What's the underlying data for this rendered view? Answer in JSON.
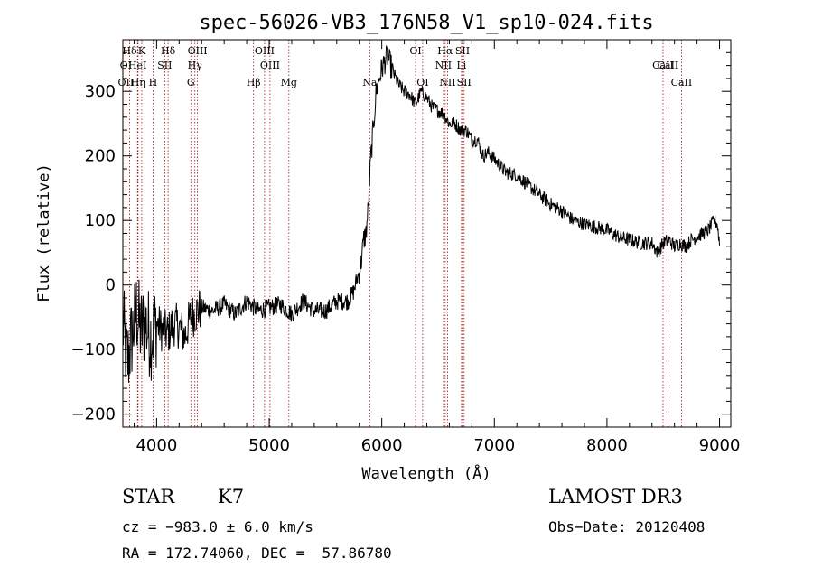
{
  "chart_data": {
    "type": "line",
    "title": "spec-56026-VB3_176N58_V1_sp10-024.fits",
    "xlabel": "Wavelength (Å)",
    "ylabel": "Flux (relative)",
    "xlim": [
      3700,
      9100
    ],
    "ylim": [
      -220,
      380
    ],
    "xticks": [
      4000,
      5000,
      6000,
      7000,
      8000,
      9000
    ],
    "yticks": [
      -200,
      -100,
      0,
      100,
      200,
      300
    ],
    "series": [
      {
        "name": "flux",
        "color": "#000000",
        "x": [
          3700,
          3740,
          3780,
          3820,
          3860,
          3900,
          3950,
          4000,
          4050,
          4100,
          4150,
          4200,
          4250,
          4300,
          4400,
          4500,
          4600,
          4700,
          4800,
          4900,
          5000,
          5100,
          5200,
          5300,
          5400,
          5500,
          5600,
          5700,
          5750,
          5780,
          5800,
          5820,
          5840,
          5860,
          5880,
          5900,
          5950,
          6000,
          6050,
          6100,
          6150,
          6200,
          6250,
          6300,
          6350,
          6400,
          6450,
          6500,
          6550,
          6600,
          6650,
          6700,
          6750,
          6800,
          6850,
          6900,
          6950,
          7000,
          7100,
          7200,
          7300,
          7400,
          7500,
          7600,
          7700,
          7800,
          7900,
          8000,
          8100,
          8200,
          8300,
          8400,
          8450,
          8500,
          8550,
          8600,
          8650,
          8700,
          8750,
          8800,
          8850,
          8900,
          8950,
          8980,
          9000
        ],
        "y": [
          -60,
          -120,
          -80,
          -40,
          -70,
          -60,
          -80,
          -60,
          -70,
          -75,
          -60,
          -65,
          -80,
          -50,
          -35,
          -40,
          -30,
          -45,
          -25,
          -40,
          -35,
          -30,
          -45,
          -25,
          -40,
          -40,
          -25,
          -25,
          -10,
          10,
          20,
          40,
          70,
          80,
          120,
          190,
          300,
          335,
          355,
          330,
          310,
          300,
          295,
          280,
          300,
          290,
          275,
          270,
          265,
          250,
          250,
          240,
          240,
          225,
          225,
          200,
          205,
          195,
          175,
          170,
          155,
          140,
          125,
          115,
          100,
          95,
          90,
          85,
          75,
          70,
          65,
          65,
          50,
          65,
          70,
          60,
          65,
          60,
          70,
          75,
          80,
          85,
          100,
          95,
          65
        ]
      }
    ],
    "lines": [
      {
        "name": "Hδ",
        "wave": 3760,
        "row": 0
      },
      {
        "name": "K",
        "wave": 3868,
        "row": 0
      },
      {
        "name": "Hδ",
        "wave": 4102,
        "row": 0
      },
      {
        "name": "OIII",
        "wave": 4363,
        "row": 0
      },
      {
        "name": "OIII",
        "wave": 4959,
        "row": 0
      },
      {
        "name": "OI",
        "wave": 6300,
        "row": 0
      },
      {
        "name": "Hα",
        "wave": 6563,
        "row": 0
      },
      {
        "name": "SII",
        "wave": 6717,
        "row": 0
      },
      {
        "name": "CaII",
        "wave": 8498,
        "row": 1
      },
      {
        "name": "OI",
        "wave": 3727,
        "row": 1
      },
      {
        "name": "HeI",
        "wave": 3830,
        "row": 1
      },
      {
        "name": "SII",
        "wave": 4072,
        "row": 1
      },
      {
        "name": "Hγ",
        "wave": 4340,
        "row": 1
      },
      {
        "name": "OIII",
        "wave": 5007,
        "row": 1
      },
      {
        "name": "NII",
        "wave": 6548,
        "row": 1
      },
      {
        "name": "Li",
        "wave": 6708,
        "row": 1
      },
      {
        "name": "CaII",
        "wave": 8542,
        "row": 1
      },
      {
        "name": "OII",
        "wave": 3727,
        "row": 2
      },
      {
        "name": "Hη",
        "wave": 3835,
        "row": 2
      },
      {
        "name": "H",
        "wave": 3968,
        "row": 2
      },
      {
        "name": "G",
        "wave": 4304,
        "row": 2
      },
      {
        "name": "Hβ",
        "wave": 4861,
        "row": 2
      },
      {
        "name": "Mg",
        "wave": 5175,
        "row": 2
      },
      {
        "name": "Na",
        "wave": 5893,
        "row": 2
      },
      {
        "name": "OI",
        "wave": 6363,
        "row": 2
      },
      {
        "name": "NII",
        "wave": 6584,
        "row": 2
      },
      {
        "name": "SII",
        "wave": 6731,
        "row": 2
      },
      {
        "name": "CaII",
        "wave": 8662,
        "row": 2
      }
    ]
  },
  "info": {
    "class": "STAR",
    "subclass": "K7",
    "survey": "LAMOST DR3",
    "cz": "cz = −983.0 ± 6.0 km/s",
    "obsdate": "Obs−Date: 20120408",
    "radec": "RA = 172.74060, DEC =  57.86780"
  }
}
